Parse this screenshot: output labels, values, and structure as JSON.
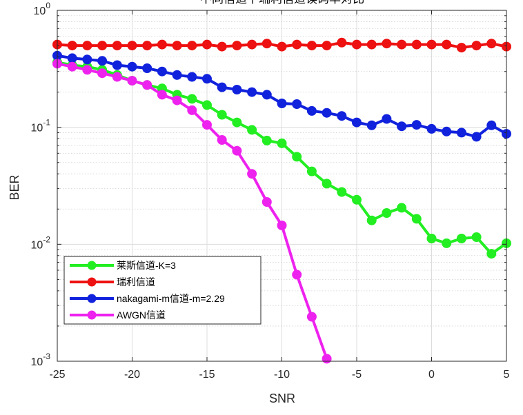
{
  "chart_data": {
    "type": "line",
    "title": "不同信道下瑞利信道误码率对比",
    "xlabel": "SNR",
    "ylabel": "BER",
    "xlim": [
      -25,
      5
    ],
    "ylim": [
      0.001,
      1
    ],
    "yscale": "log",
    "grid": true,
    "legend_position": "bottom-left",
    "x_ticks": [
      "-25",
      "-20",
      "-15",
      "-10",
      "-5",
      "0",
      "5"
    ],
    "y_ticks": [
      {
        "base": "10",
        "exp": "0"
      },
      {
        "base": "10",
        "exp": "-1"
      },
      {
        "base": "10",
        "exp": "-2"
      },
      {
        "base": "10",
        "exp": "-3"
      }
    ],
    "x": [
      -25,
      -24,
      -23,
      -22,
      -21,
      -20,
      -19,
      -18,
      -17,
      -16,
      -15,
      -14,
      -13,
      -12,
      -11,
      -10,
      -9,
      -8,
      -7,
      -6,
      -5,
      -4,
      -3,
      -2,
      -1,
      0,
      1,
      2,
      3,
      4,
      5
    ],
    "series": [
      {
        "name": "莱斯信道-K=3",
        "color": "#22ee22",
        "values": [
          0.36,
          0.34,
          0.33,
          0.31,
          0.28,
          0.25,
          0.23,
          0.215,
          0.19,
          0.175,
          0.155,
          0.128,
          0.11,
          0.095,
          0.077,
          0.073,
          0.056,
          0.042,
          0.033,
          0.028,
          0.024,
          0.016,
          0.0185,
          0.0205,
          0.0165,
          0.0112,
          0.0102,
          0.0112,
          0.0115,
          0.0083,
          0.0102
        ]
      },
      {
        "name": "瑞利信道",
        "color": "#ee1111",
        "values": [
          0.51,
          0.5,
          0.5,
          0.5,
          0.5,
          0.5,
          0.5,
          0.51,
          0.5,
          0.5,
          0.51,
          0.49,
          0.5,
          0.51,
          0.52,
          0.49,
          0.51,
          0.5,
          0.5,
          0.53,
          0.51,
          0.51,
          0.52,
          0.51,
          0.51,
          0.51,
          0.51,
          0.48,
          0.5,
          0.52,
          0.49
        ]
      },
      {
        "name": "nakagami-m信道-m=2.29",
        "color": "#1122dd",
        "values": [
          0.41,
          0.39,
          0.38,
          0.37,
          0.34,
          0.33,
          0.32,
          0.3,
          0.28,
          0.27,
          0.26,
          0.22,
          0.21,
          0.2,
          0.19,
          0.16,
          0.158,
          0.138,
          0.133,
          0.125,
          0.11,
          0.104,
          0.118,
          0.102,
          0.105,
          0.097,
          0.092,
          0.09,
          0.083,
          0.104,
          0.088
        ]
      },
      {
        "name": "AWGN信道",
        "color": "#ee22ee",
        "values": [
          0.35,
          0.33,
          0.31,
          0.29,
          0.27,
          0.25,
          0.23,
          0.19,
          0.17,
          0.14,
          0.105,
          0.078,
          0.063,
          0.04,
          0.023,
          0.0145,
          0.0055,
          0.0024,
          0.00105,
          null,
          null,
          null,
          null,
          null,
          null,
          null,
          null,
          null,
          null,
          null,
          null
        ]
      }
    ]
  }
}
